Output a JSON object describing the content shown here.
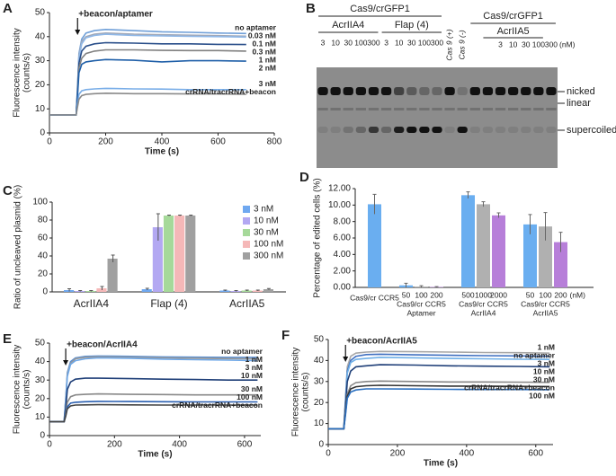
{
  "chart_data": [
    {
      "type": "line",
      "panel": "A",
      "xlabel": "Time (s)",
      "ylabel": "Fluorescence intensity",
      "ylabel2": "(counts/s)",
      "xlim": [
        0,
        800
      ],
      "xticks": [
        0,
        200,
        400,
        600,
        800
      ],
      "ylim": [
        0,
        50
      ],
      "yticks": [
        0,
        10,
        20,
        30,
        40,
        50
      ],
      "annotation": {
        "text": "+beacon/aptamer",
        "x": 100
      },
      "x": [
        0,
        95,
        100,
        105,
        115,
        130,
        160,
        200,
        300,
        400,
        500,
        600,
        700
      ],
      "series": [
        {
          "name": "no aptamer",
          "color": "#6f9fd8",
          "values": [
            7.5,
            7.5,
            20,
            33,
            39,
            41.5,
            42.5,
            43,
            42.5,
            42,
            41.8,
            41.5,
            41.3
          ]
        },
        {
          "name": "0.03 nM",
          "color": "#a0a8b8",
          "values": [
            7.5,
            7.5,
            19,
            32,
            38,
            40,
            41,
            41.5,
            41,
            40.8,
            40.6,
            40.4,
            40.2
          ]
        },
        {
          "name": "0.1 nM",
          "color": "#8fb8e8",
          "values": [
            7.5,
            7.5,
            19,
            31,
            37,
            39.5,
            40.5,
            41,
            40.5,
            40.3,
            40.1,
            40,
            39.8
          ]
        },
        {
          "name": "0.3 nM",
          "color": "#2a4f8a",
          "values": [
            7.5,
            7.5,
            18,
            29,
            34,
            36,
            37,
            37.5,
            37.3,
            37,
            37,
            36.8,
            36.7
          ]
        },
        {
          "name": "1 nM",
          "color": "#808080",
          "values": [
            7.5,
            7.5,
            17,
            27,
            31,
            33,
            34,
            34.5,
            34.5,
            34.3,
            34.2,
            34.2,
            34
          ]
        },
        {
          "name": "2 nM",
          "color": "#1f5fa8",
          "values": [
            7.5,
            7.5,
            16,
            25,
            28.5,
            29.5,
            30,
            30.5,
            30.2,
            29.5,
            30,
            30,
            29.8
          ]
        },
        {
          "name": "3 nM",
          "color": "#7aaee8",
          "values": [
            7.5,
            7.5,
            12,
            16,
            17.5,
            18,
            18.3,
            18.5,
            18.3,
            18.2,
            18,
            18,
            18
          ]
        },
        {
          "name": "crRNA/tracrRNA+beacon",
          "color": "#8a8a8a",
          "values": [
            7.5,
            7.5,
            11,
            14,
            15.5,
            16,
            16.3,
            16.5,
            16.3,
            16.3,
            16.2,
            16.2,
            16.1
          ]
        }
      ]
    },
    {
      "type": "grouped_bar",
      "panel": "C",
      "ylabel": "Ratio of uncleaved plasmid (%)",
      "ylim": [
        0,
        100
      ],
      "yticks": [
        0,
        20,
        40,
        60,
        80,
        100
      ],
      "categories": [
        "AcrIIA4",
        "Flap (4)",
        "AcrIIA5"
      ],
      "series": [
        {
          "name": "3 nM",
          "color": "#6fa8f0",
          "values": [
            2,
            3,
            1.5
          ],
          "errors": [
            1.5,
            1,
            0.5
          ]
        },
        {
          "name": "10 nM",
          "color": "#b3a8f2",
          "values": [
            1,
            72,
            1
          ],
          "errors": [
            0.5,
            15,
            0.5
          ]
        },
        {
          "name": "30 nM",
          "color": "#a6d99a",
          "values": [
            1,
            85,
            1.5
          ],
          "errors": [
            0.5,
            0.5,
            0.5
          ]
        },
        {
          "name": "100 nM",
          "color": "#f5b8b8",
          "values": [
            4,
            85,
            1.5
          ],
          "errors": [
            2,
            0.5,
            0.5
          ]
        },
        {
          "name": "300 nM",
          "color": "#a0a0a0",
          "values": [
            37,
            85,
            3
          ],
          "errors": [
            4,
            0.5,
            0.8
          ]
        }
      ]
    },
    {
      "type": "bar",
      "panel": "D",
      "ylabel": "Percentage of edited cells (%)",
      "unit": "(nM)",
      "ylim": [
        0,
        12
      ],
      "yticks": [
        {
          "value": 0,
          "label": "0.00"
        },
        {
          "value": 2,
          "label": "2.00"
        },
        {
          "value": 4,
          "label": "4.00"
        },
        {
          "value": 6,
          "label": "6.00"
        },
        {
          "value": 8,
          "label": "8.00"
        },
        {
          "value": 10,
          "label": "10.00"
        },
        {
          "value": 12,
          "label": "12.00"
        }
      ],
      "colors": [
        "#6aaef0",
        "#b0b0b0",
        "#b77fd9"
      ],
      "groups": [
        {
          "label": "Cas9/cr CCR5",
          "categories": [
            null
          ],
          "values": [
            10.1
          ],
          "errors": [
            1.2
          ]
        },
        {
          "label": "Cas9/cr CCR5",
          "sublabel": "Aptamer",
          "categories": [
            "50",
            "100",
            "200"
          ],
          "values": [
            0.25,
            0.1,
            0.05
          ],
          "errors": [
            0.25,
            0.1,
            0.05
          ]
        },
        {
          "label": "Cas9/cr CCR5",
          "sublabel": "AcrIIA4",
          "categories": [
            "500",
            "1000",
            "2000"
          ],
          "values": [
            11.2,
            10.1,
            8.75
          ],
          "errors": [
            0.4,
            0.3,
            0.3
          ]
        },
        {
          "label": "Cas9/cr CCR5",
          "sublabel": "AcrIIA5",
          "categories": [
            "50",
            "100",
            "200"
          ],
          "values": [
            7.65,
            7.4,
            5.5
          ],
          "errors": [
            1.2,
            1.7,
            1.2
          ]
        }
      ]
    },
    {
      "type": "line",
      "panel": "E",
      "xlabel": "Time (s)",
      "ylabel": "Fluorescence intensity",
      "ylabel2": "(counts/s)",
      "xlim": [
        0,
        650
      ],
      "xticks": [
        0,
        200,
        400,
        600
      ],
      "ylim": [
        0,
        50
      ],
      "yticks": [
        0,
        10,
        20,
        30,
        40,
        50
      ],
      "annotation": {
        "text": "+beacon/AcrIIA4",
        "x": 50
      },
      "x": [
        0,
        45,
        50,
        55,
        65,
        80,
        110,
        150,
        250,
        350,
        450,
        550,
        640
      ],
      "series": [
        {
          "name": "no aptamer",
          "color": "#5b8fd0",
          "values": [
            7.5,
            7.5,
            20,
            34,
            40,
            42,
            42.8,
            43,
            42.8,
            42.5,
            42.4,
            42.3,
            42.3
          ]
        },
        {
          "name": "1 nM",
          "color": "#999999",
          "values": [
            7.5,
            7.5,
            20,
            33,
            39,
            41.5,
            42.3,
            42.5,
            42.3,
            42,
            41.8,
            41.6,
            41.5
          ]
        },
        {
          "name": "3 nM",
          "color": "#6fa8e8",
          "values": [
            7.5,
            7.5,
            19,
            32,
            38.5,
            40.5,
            41.5,
            42,
            41.8,
            41.3,
            41,
            40.8,
            40.5
          ]
        },
        {
          "name": "10 nM",
          "color": "#1f3f78",
          "values": [
            7.5,
            7.5,
            15,
            25,
            29,
            30.5,
            31,
            31,
            30.8,
            30.5,
            30.3,
            30,
            30
          ]
        },
        {
          "name": "30 nM",
          "color": "#888888",
          "values": [
            7.5,
            7.5,
            12,
            18,
            21,
            22,
            22.3,
            22.5,
            22.3,
            22.2,
            22,
            22,
            22
          ]
        },
        {
          "name": "100 nM",
          "color": "#2a5fb0",
          "values": [
            7.5,
            7.5,
            11,
            15.5,
            17.5,
            18,
            18.3,
            18.5,
            18.4,
            18.3,
            18.2,
            18.2,
            18.2
          ]
        },
        {
          "name": "crRNA/tracrRNA+beacon",
          "color": "#444444",
          "values": [
            7.5,
            7.5,
            10.5,
            14.5,
            16,
            16.5,
            16.6,
            16.7,
            16.6,
            16.5,
            16.5,
            16.5,
            16.5
          ]
        }
      ]
    },
    {
      "type": "line",
      "panel": "F",
      "xlabel": "Time (s)",
      "ylabel": "Fluorescence intensity",
      "ylabel2": "(counts/s)",
      "xlim": [
        0,
        650
      ],
      "xticks": [
        0,
        200,
        400,
        600
      ],
      "ylim": [
        0,
        50
      ],
      "yticks": [
        0,
        10,
        20,
        30,
        40,
        50
      ],
      "annotation": {
        "text": "+beacon/AcrIIA5",
        "x": 50
      },
      "x": [
        0,
        45,
        50,
        55,
        65,
        80,
        110,
        150,
        250,
        350,
        450,
        550,
        640
      ],
      "series": [
        {
          "name": "1 nM",
          "color": "#a8a8a8",
          "values": [
            7.5,
            7.5,
            22,
            37,
            42,
            43.5,
            44,
            44.3,
            44.2,
            44,
            43.8,
            43.7,
            43.5
          ]
        },
        {
          "name": "no aptamer",
          "color": "#3f6fc0",
          "values": [
            7.5,
            7.5,
            21,
            35,
            40,
            42,
            42.8,
            43,
            42.7,
            42.5,
            42.3,
            42.2,
            42
          ]
        },
        {
          "name": "3 nM",
          "color": "#6fb0e8",
          "values": [
            7.5,
            7.5,
            20,
            34,
            39,
            40.5,
            41,
            41.5,
            41.3,
            41,
            40.8,
            40.6,
            40.5
          ]
        },
        {
          "name": "10 nM",
          "color": "#1f3f78",
          "values": [
            7.5,
            7.5,
            18,
            30,
            35,
            37,
            37.5,
            38,
            37.8,
            37.5,
            37.3,
            37.2,
            37
          ]
        },
        {
          "name": "30 nM",
          "color": "#888888",
          "values": [
            7.5,
            7.5,
            16,
            24,
            28,
            29.5,
            30,
            30.2,
            30,
            29.8,
            29.8,
            29.7,
            29.6
          ]
        },
        {
          "name": "crRNA/tracrRNA+beacon",
          "color": "#333333",
          "values": [
            7.5,
            7.5,
            15,
            23,
            26.5,
            27.5,
            28,
            28.2,
            28,
            27.8,
            27.8,
            27.7,
            27.6
          ]
        },
        {
          "name": "100 nM",
          "color": "#2a6fc0",
          "values": [
            7.5,
            7.5,
            14,
            22,
            25,
            26,
            26.5,
            26.5,
            26.4,
            26.3,
            26.2,
            26.2,
            26.1
          ]
        }
      ]
    }
  ],
  "gel": {
    "panel": "B",
    "header_left": "Cas9/crGFP1",
    "header_right": "Cas9/crGFP1",
    "groups": [
      {
        "label": "AcrIIA4",
        "lanes": [
          "3",
          "10",
          "30",
          "100",
          "300"
        ]
      },
      {
        "label": "Flap (4)",
        "lanes": [
          "3",
          "10",
          "30",
          "100",
          "300"
        ]
      }
    ],
    "controls": [
      "Cas 9 (+)",
      "Cas 9 (-)"
    ],
    "group_right": {
      "label": "AcrIIA5",
      "lanes": [
        "3",
        "10",
        "30",
        "100",
        "300"
      ]
    },
    "unit": "(nM)",
    "bands": [
      "nicked",
      "linear",
      "supercoiled"
    ]
  }
}
